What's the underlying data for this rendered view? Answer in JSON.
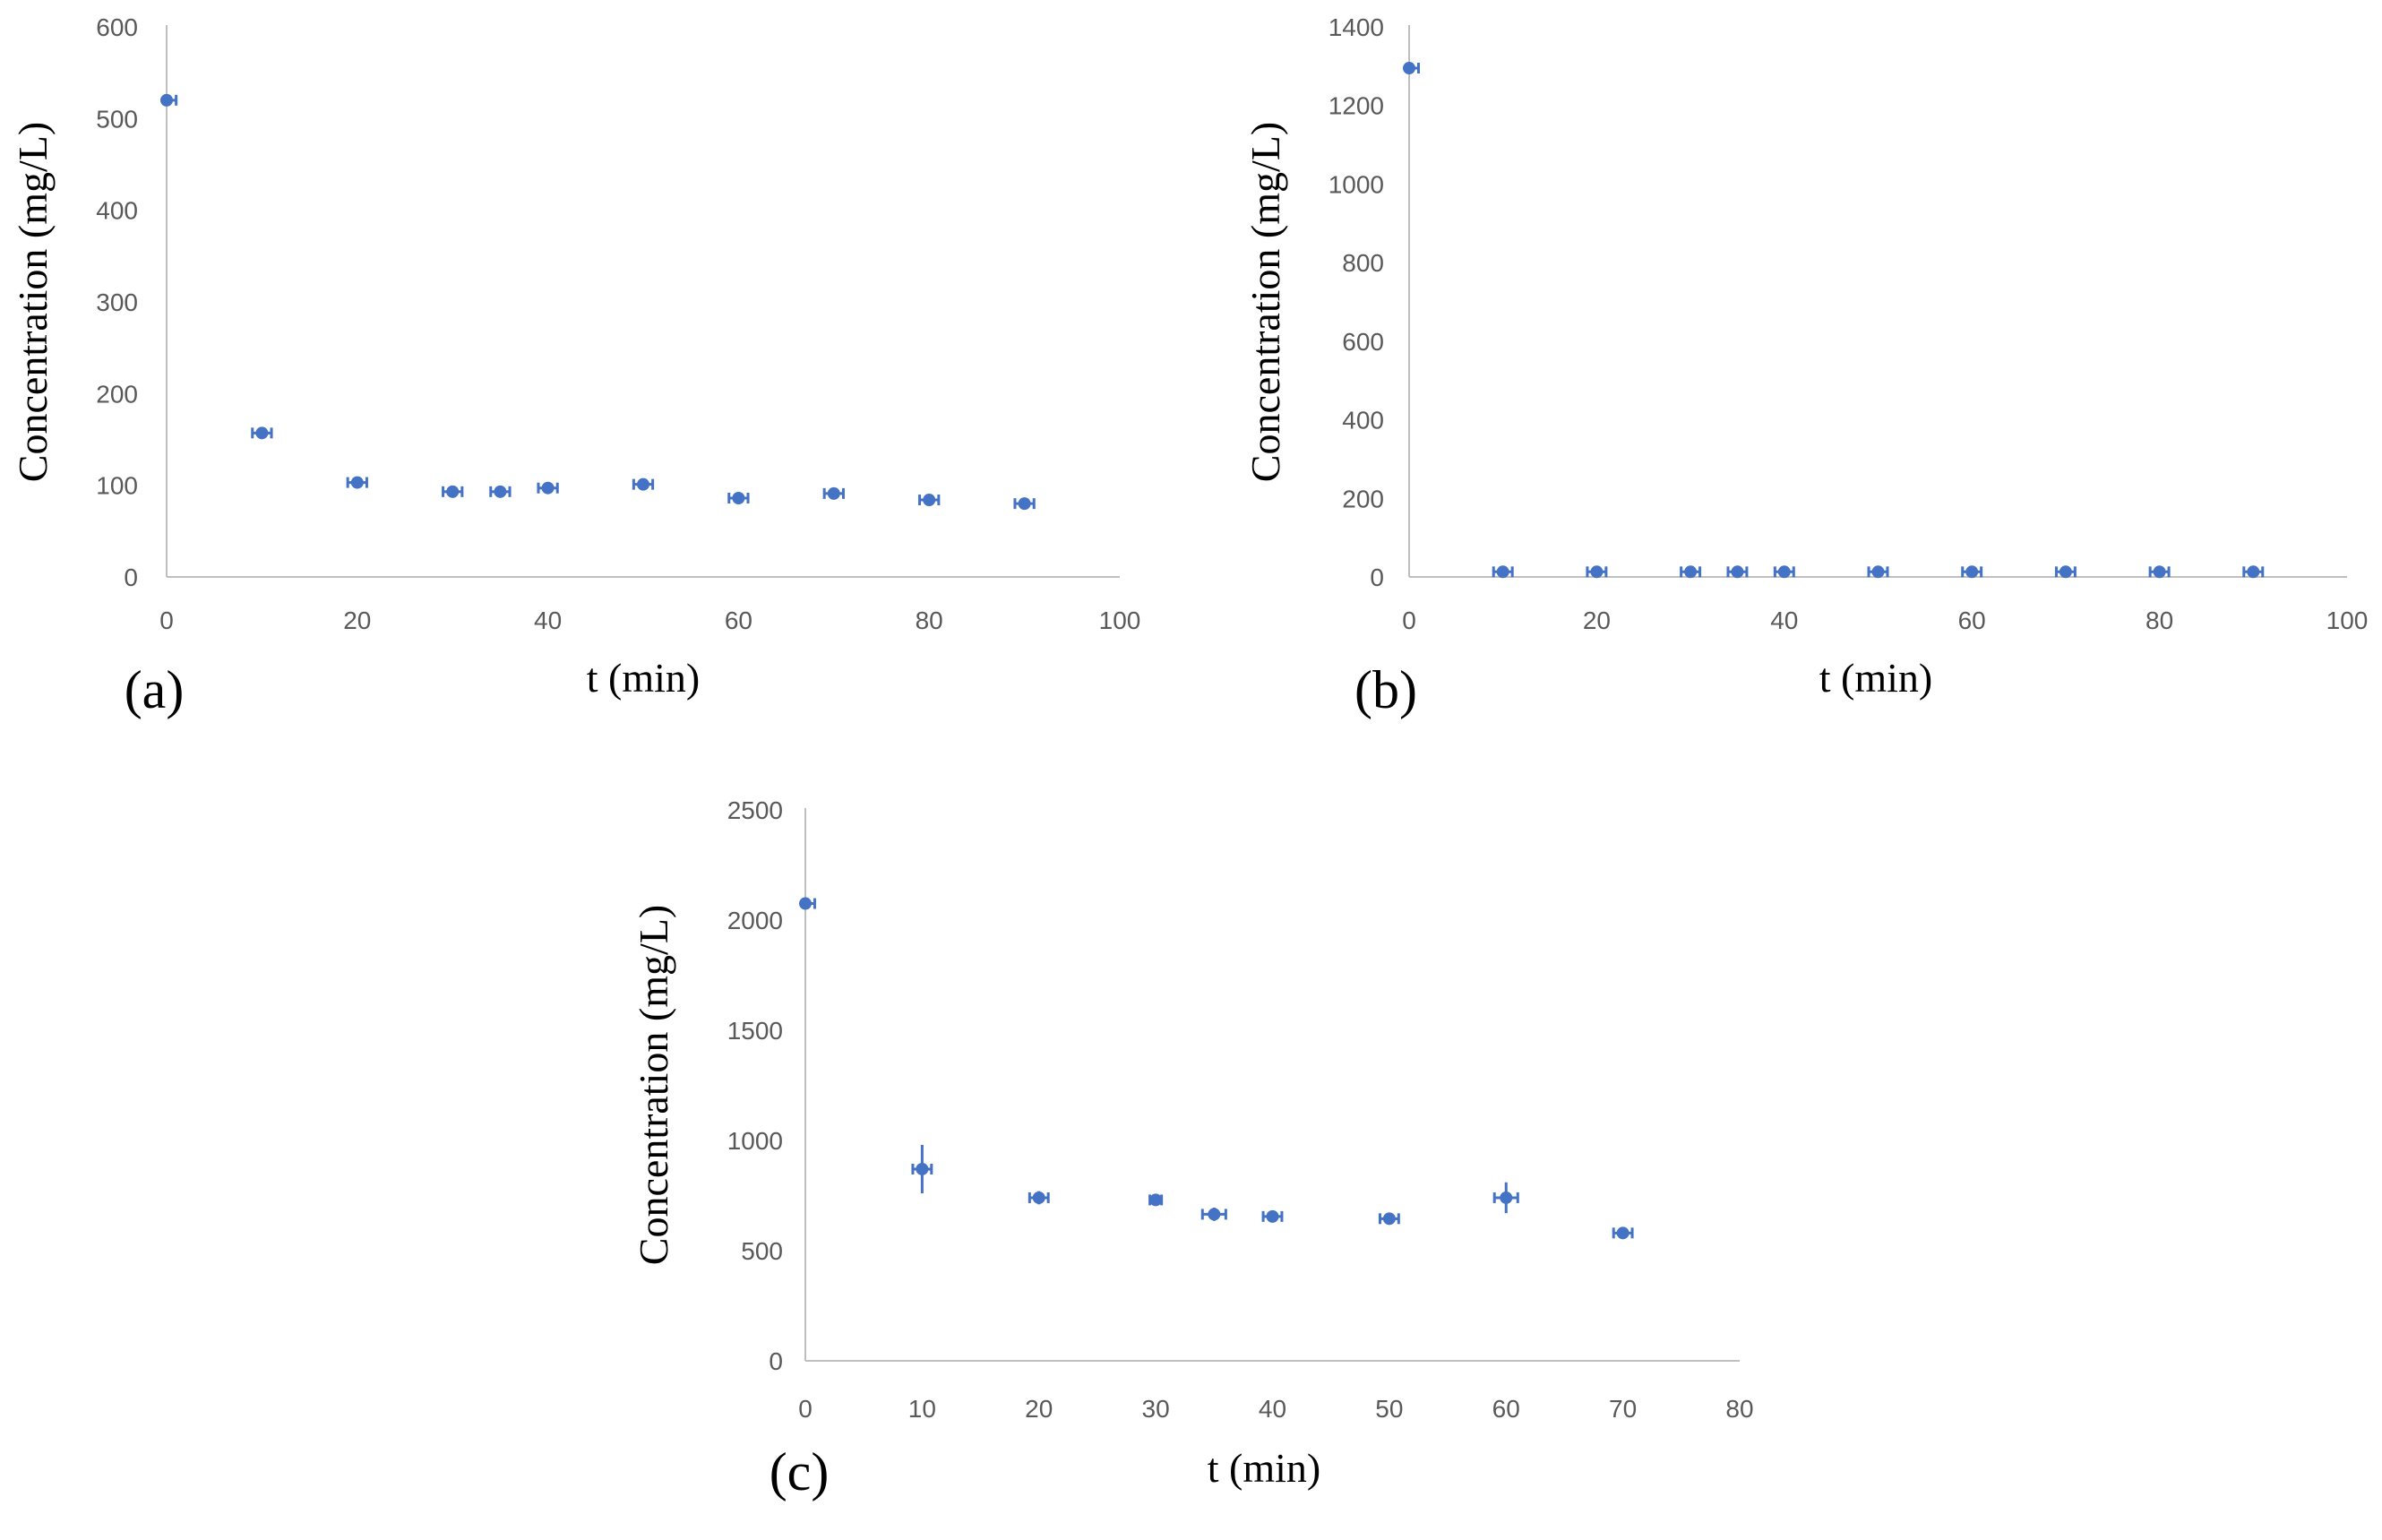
{
  "chart_data": [
    {
      "type": "scatter",
      "panel_label": "(a)",
      "xlabel": "t (min)",
      "ylabel": "Concentration (mg/L)",
      "xlim": [
        0,
        100
      ],
      "ylim": [
        0,
        600
      ],
      "xticks": [
        0,
        20,
        40,
        60,
        80,
        100
      ],
      "yticks": [
        0,
        100,
        200,
        300,
        400,
        500,
        600
      ],
      "grid": false,
      "series": [
        {
          "name": "",
          "x": [
            0,
            10,
            20,
            30,
            35,
            40,
            50,
            60,
            70,
            80,
            90
          ],
          "y": [
            520,
            157,
            103,
            93,
            93,
            97,
            101,
            86,
            91,
            84,
            80
          ],
          "x_err": [
            1,
            1,
            1,
            1,
            1,
            1,
            1,
            1,
            1,
            1,
            1
          ],
          "y_err": [
            3,
            4,
            3,
            3,
            3,
            3,
            3,
            3,
            3,
            3,
            3
          ]
        }
      ]
    },
    {
      "type": "scatter",
      "panel_label": "(b)",
      "xlabel": "t (min)",
      "ylabel": "Concentration (mg/L)",
      "xlim": [
        0,
        100
      ],
      "ylim": [
        0,
        1400
      ],
      "xticks": [
        0,
        20,
        40,
        60,
        80,
        100
      ],
      "yticks": [
        0,
        200,
        400,
        600,
        800,
        1000,
        1200,
        1400
      ],
      "grid": false,
      "series": [
        {
          "name": "",
          "x": [
            0,
            10,
            20,
            30,
            35,
            40,
            50,
            60,
            70,
            80,
            90
          ],
          "y": [
            1295,
            13,
            13,
            13,
            13,
            13,
            13,
            13,
            13,
            13,
            13
          ],
          "x_err": [
            1,
            1,
            1,
            1,
            1,
            1,
            1,
            1,
            1,
            1,
            1
          ],
          "y_err": [
            8,
            8,
            8,
            8,
            8,
            8,
            8,
            8,
            8,
            8,
            8
          ]
        }
      ]
    },
    {
      "type": "scatter",
      "panel_label": "(c)",
      "xlabel": "t (min)",
      "ylabel": "Concentration (mg/L)",
      "xlim": [
        0,
        80
      ],
      "ylim": [
        0,
        2500
      ],
      "xticks": [
        0,
        10,
        20,
        30,
        40,
        50,
        60,
        70,
        80
      ],
      "yticks": [
        0,
        500,
        1000,
        1500,
        2000,
        2500
      ],
      "grid": false,
      "series": [
        {
          "name": "",
          "x": [
            0,
            10,
            20,
            30,
            35,
            40,
            50,
            60,
            70
          ],
          "y": [
            2075,
            870,
            740,
            730,
            665,
            655,
            645,
            740,
            580
          ],
          "x_err": [
            0.8,
            0.8,
            0.8,
            0.5,
            1,
            0.8,
            0.8,
            1,
            0.8
          ],
          "y_err": [
            15,
            110,
            30,
            20,
            30,
            20,
            20,
            70,
            25
          ]
        }
      ]
    }
  ]
}
